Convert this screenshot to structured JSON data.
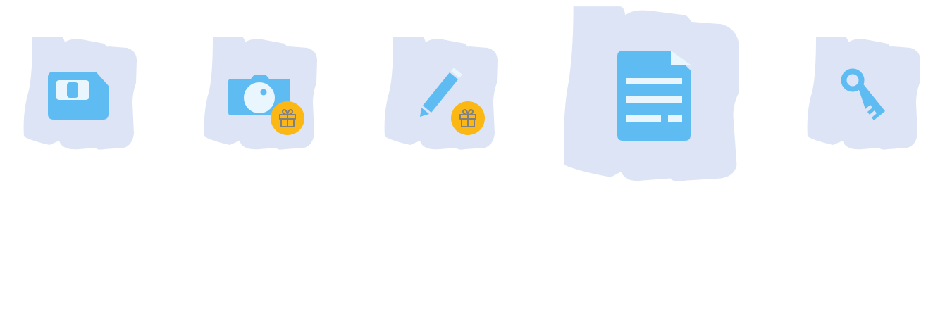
{
  "colors": {
    "tile_background": "#dce4f5",
    "icon_primary": "#5fbcf2",
    "icon_light": "#eaf6fd",
    "badge_background": "#fbb713",
    "badge_icon": "#808080"
  },
  "tiles": [
    {
      "name": "sim-card-tile",
      "icon": "sim-card-icon",
      "badge": null,
      "selected": false
    },
    {
      "name": "camera-tile",
      "icon": "camera-icon",
      "badge": "gift-icon",
      "selected": false
    },
    {
      "name": "pencil-tile",
      "icon": "pencil-icon",
      "badge": "gift-icon",
      "selected": false
    },
    {
      "name": "document-tile",
      "icon": "document-icon",
      "badge": null,
      "selected": true
    },
    {
      "name": "key-tile",
      "icon": "key-icon",
      "badge": null,
      "selected": false
    }
  ]
}
